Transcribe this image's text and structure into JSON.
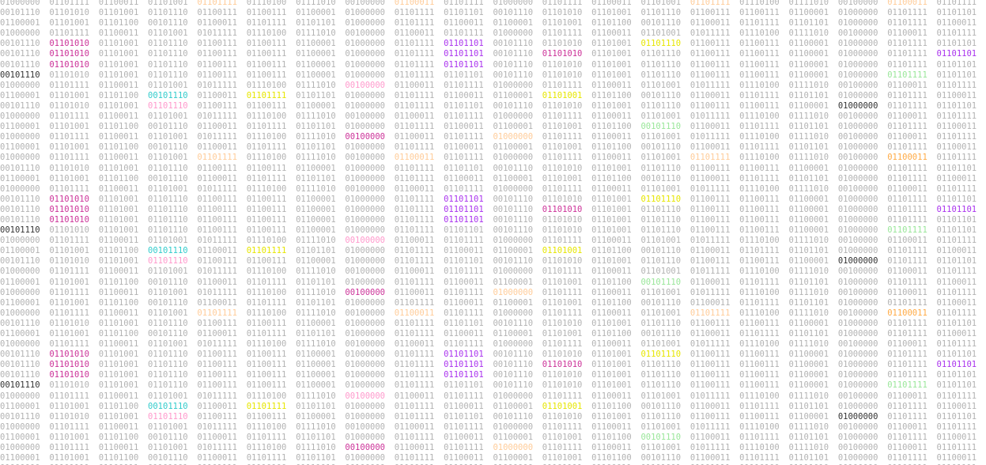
{
  "binary_rows": [
    "01000000 01101111 01100011 01101001 01101111 01110100 01111010 00100000 01100011 01101111 01000000 01101111 01100011 01101001 01101111 01110100 01111010 00100000 01100011 01101111",
    "00101110 01101010 01101001 01101110 01100111 01100111 01100001 01000000 01101111 01101101 00101110 01101010 01101001 01101110 01100111 01100111 01100001 01000000 01101111 01101101",
    "01100001 01101001 01101100 00101110 01100011 01101111 01101101 01000000 01101111 01100011 01100001 01101001 01101100 00101110 01100011 01101111 01101101 01000000 01101111 01100011",
    "01000000 01101111 01100011 01101001 01011111 01110100 01111010 00100000 01100011 01101111 01000000 01101111 01100011 01101001 01011111 01110100 01111010 00100000 01100011 01101111",
    "00101110 01101010 01101001 01101110 01100111 01100111 01100001 01000000 01101111 01101101 00101110 01101010 01101001 01101110 01100111 01100111 01100001 01000000 01101111 01101101",
    "00101110 01101010 01101001 01101110 01100111 01100111 01100001 01000000 01101111 01101101 00101110 01101010 01101001 01101110 01100111 01100111 01100001 01000000 01101111 01101101",
    "00101110 01101010 01101001 01101110 01100111 01100111 01100001 01000000 01101111 01101101 00101110 01101010 01101001 01101110 01100111 01100111 01100001 01000000 01101111 01101101",
    "00101110 01101010 01101001 01101110 01100111 01100111 01100001 01000000 01101111 01101101 00101110 01101010 01101001 01101110 01100111 01100111 01100001 01000000 01101111 01101101",
    "01000000 01101111 01100011 01101001 01011111 01110100 01111010 00100000 01100011 01101111 01000000 01101111 01100011 01101001 01011111 01110100 01111010 00100000 01100011 01101111",
    "01100001 01101001 01101100 00101110 01100011 01101111 01101101 01000000 01101111 01100011 01100001 01101001 01101100 00101110 01100011 01101111 01101101 01000000 01101111 01100011",
    "00101110 01101010 01101001 01101110 01100111 01100111 01100001 01000000 01101111 01101101 00101110 01101010 01101001 01101110 01100111 01100111 01100001 01000000 01101111 01101101",
    "01000000 01101111 01100011 01101001 01011111 01110100 01111010 00100000 01100011 01101111 01000000 01101111 01100011 01101001 01011111 01110100 01111010 00100000 01100011 01101111",
    "01100001 01101001 01101100 00101110 01100011 01101111 01101101 01000000 01101111 01100011 01100001 01101001 01101100 00101110 01100011 01101111 01101101 01000000 01101111 01100011",
    "01000000 01101111 01100011 01101001 01011111 01110100 01111010 00100000 01100011 01101111 01000000 01101111 01100011 01101001 01011111 01110100 01111010 00100000 01100011 01101111",
    "01100001 01101001 01101100 00101110 01100011 01101111 01101101 01000000 01101111 01100011 01100001 01101001 01101100 00101110 01100011 01101111 01101101 01000000 01101111 01100011",
    "01000000 01101111 01100011 01101001 01101111 01110100 01111010 00100000 01100011 01101111 01000000 01101111 01100011 01101001 01101111 01110100 01111010 00100000 01100011 01101111",
    "00101110 01101010 01101001 01101110 01100111 01100111 01100001 01000000 01101111 01101101 00101110 01101010 01101001 01101110 01100111 01100111 01100001 01000000 01101111 01101101",
    "01100001 01101001 01101100 00101110 01100011 01101111 01101101 01000000 01101111 01100011 01100001 01101001 01101100 00101110 01100011 01101111 01101101 01000000 01101111 01100011",
    "01000000 01101111 01100011 01101001 01011111 01110100 01111010 00100000 01100011 01101111 01000000 01101111 01100011 01101001 01011111 01110100 01111010 00100000 01100011 01101111",
    "00101110 01101010 01101001 01101110 01100111 01100111 01100001 01000000 01101111 01101101 00101110 01101010 01101001 01101110 01100111 01100111 01100001 01000000 01101111 01101101",
    "00101110 01101010 01101001 01101110 01100111 01100111 01100001 01000000 01101111 01101101 00101110 01101010 01101001 01101110 01100111 01100111 01100001 01000000 01101111 01101101",
    "00101110 01101010 01101001 01101110 01100111 01100111 01100001 01000000 01101111 01101101 00101110 01101010 01101001 01101110 01100111 01100111 01100001 01000000 01101111 01101101",
    "00101110 01101010 01101001 01101110 01100111 01100111 01100001 01000000 01101111 01101101 00101110 01101010 01101001 01101110 01100111 01100111 01100001 01000000 01101111 01101101",
    "01000000 01101111 01100011 01101001 01011111 01110100 01111010 00100000 01100011 01101111 01000000 01101111 01100011 01101001 01011111 01110100 01111010 00100000 01100011 01101111",
    "01100001 01101001 01101100 00101110 01100011 01101111 01101101 01000000 01101111 01100011 01100001 01101001 01101100 00101110 01100011 01101111 01101101 01000000 01101111 01100011",
    "00101110 01101010 01101001 01101110 01100111 01100111 01100001 01000000 01101111 01101101 00101110 01101010 01101001 01101110 01100111 01100111 01100001 01000000 01101111 01101101",
    "01000000 01101111 01100011 01101001 01011111 01110100 01111010 00100000 01100011 01101111 01000000 01101111 01100011 01101001 01011111 01110100 01111010 00100000 01100011 01101111",
    "01100001 01101001 01101100 00101110 01100011 01101111 01101101 01000000 01101111 01100011 01100001 01101001 01101100 00101110 01100011 01101111 01101101 01000000 01101111 01100011",
    "01000000 01101111 01100011 01101001 01011111 01110100 01111010 00100000 01100011 01101111 01000000 01101111 01100011 01101001 01011111 01110100 01111010 00100000 01100011 01101111",
    "01100001 01101001 01101100 00101110 01100011 01101111 01101101 01000000 01101111 01100011 01100001 01101001 01101100 00101110 01100011 01101111 01101101 01000000 01101111 01100011",
    "01000000 01101111 01100011 01101001 01101111 01110100 01111010 00100000 01100011 01101111 01000000 01101111 01100011 01101001 01101111 01110100 01111010 00100000 01100011 01101111",
    "00101110 01101010 01101001 01101110 01100111 01100111 01100001 01000000 01101111 01101101 00101110 01101010 01101001 01101110 01100111 01100111 01100001 01000000 01101111 01101101",
    "01100001 01101001 01101100 00101110 01100011 01101111 01101101 01000000 01101111 01100011 01100001 01101001 01101100 00101110 01100011 01101111 01101101 01000000 01101111 01100011",
    "01000000 01101111 01100011 01101001 01011111 01110100 01111010 00100000 01100011 01101111 01000000 01101111 01100011 01101001 01011111 01110100 01111010 00100000 01100011 01101111",
    "00101110 01101010 01101001 01101110 01100111 01100111 01100001 01000000 01101111 01101101 00101110 01101010 01101001 01101110 01100111 01100111 01100001 01000000 01101111 01101101",
    "00101110 01101010 01101001 01101110 01100111 01100111 01100001 01000000 01101111 01101101 00101110 01101010 01101001 01101110 01100111 01100111 01100001 01000000 01101111 01101101",
    "00101110 01101010 01101001 01101110 01100111 01100111 01100001 01000000 01101111 01101101 00101110 01101010 01101001 01101110 01100111 01100111 01100001 01000000 01101111 01101101",
    "00101110 01101010 01101001 01101110 01100111 01100111 01100001 01000000 01101111 01101101 00101110 01101010 01101001 01101110 01100111 01100111 01100001 01000000 01101111 01101101",
    "01000000 01101111 01100011 01101001 01011111 01110100 01111010 00100000 01100011 01101111 01000000 01101111 01100011 01101001 01011111 01110100 01111010 00100000 01100011 01101111",
    "01100001 01101001 01101100 00101110 01100011 01101111 01101101 01000000 01101111 01100011 01100001 01101001 01101100 00101110 01100011 01101111 01101101 01000000 01101111 01100011",
    "00101110 01101010 01101001 01101110 01100111 01100111 01100001 01000000 01101111 01101101 00101110 01101010 01101001 01101110 01100111 01100111 01100001 01000000 01101111 01101101",
    "01000000 01101111 01100011 01101001 01011111 01110100 01111010 00100000 01100011 01101111 01000000 01101111 01100011 01101001 01011111 01110100 01111010 00100000 01100011 01101111",
    "01100001 01101001 01101100 00101110 01100011 01101111 01101101 01000000 01101111 01100011 01100001 01101001 01101100 00101110 01100011 01101111 01101101 01000000 01101111 01100011",
    "01000000 01101111 01100011 01101001 01011111 01110100 01111010 00100000 01100011 01101111 01000000 01101111 01100011 01101001 01011111 01110100 01111010 00100000 01100011 01101111",
    "01100001 01101001 01101100 00101110 01100011 01101111 01101101 01000000 01101111 01100011 01100001 01101001 01101100 00101110 01100011 01101111 01101101 01000000 01101111 01100011",
    "01000000 01101111 01100011 01101001 01101111 01110100 01111010 00100000 01100011 01101111 01000000 01101111 01100011 01101001 01101111 01110100 01111010 00100000 01100011 01101111"
  ],
  "palette": {
    "background": "#ffffff",
    "base_text": "#b3b3b3",
    "highlights": [
      "#ffcc99",
      "#cc3399",
      "#33cccc",
      "#e6e600",
      "#ff99cc",
      "#99e699",
      "#333333",
      "#aa33ee",
      "#ffaa44"
    ]
  },
  "highlight_cells": [
    {
      "row": 0,
      "col": 4,
      "color": "#ffcc99"
    },
    {
      "row": 0,
      "col": 8,
      "color": "#ffcc99"
    },
    {
      "row": 0,
      "col": 14,
      "color": "#ffcc99"
    },
    {
      "row": 0,
      "col": 18,
      "color": "#ffcc99"
    },
    {
      "row": 4,
      "col": 1,
      "color": "#cc3399"
    },
    {
      "row": 4,
      "col": 9,
      "color": "#aa33ee"
    },
    {
      "row": 4,
      "col": 13,
      "color": "#e6e600"
    },
    {
      "row": 5,
      "col": 1,
      "color": "#cc3399"
    },
    {
      "row": 5,
      "col": 9,
      "color": "#aa33ee"
    },
    {
      "row": 5,
      "col": 11,
      "color": "#cc3399"
    },
    {
      "row": 5,
      "col": 19,
      "color": "#aa33ee"
    },
    {
      "row": 6,
      "col": 1,
      "color": "#cc3399"
    },
    {
      "row": 6,
      "col": 9,
      "color": "#aa33ee"
    },
    {
      "row": 7,
      "col": 0,
      "color": "#333333"
    },
    {
      "row": 7,
      "col": 18,
      "color": "#99e699"
    },
    {
      "row": 8,
      "col": 7,
      "color": "#ff99cc"
    },
    {
      "row": 9,
      "col": 3,
      "color": "#33cccc"
    },
    {
      "row": 9,
      "col": 5,
      "color": "#e6e600"
    },
    {
      "row": 9,
      "col": 11,
      "color": "#e6e600"
    },
    {
      "row": 10,
      "col": 3,
      "color": "#ff99cc"
    },
    {
      "row": 10,
      "col": 17,
      "color": "#333333"
    },
    {
      "row": 12,
      "col": 13,
      "color": "#99e699"
    },
    {
      "row": 13,
      "col": 7,
      "color": "#cc3399"
    },
    {
      "row": 13,
      "col": 10,
      "color": "#ffcc99"
    },
    {
      "row": 15,
      "col": 4,
      "color": "#ffcc99"
    },
    {
      "row": 15,
      "col": 8,
      "color": "#ffcc99"
    },
    {
      "row": 15,
      "col": 14,
      "color": "#ffcc99"
    },
    {
      "row": 15,
      "col": 18,
      "color": "#ffaa44"
    },
    {
      "row": 19,
      "col": 1,
      "color": "#cc3399"
    },
    {
      "row": 19,
      "col": 9,
      "color": "#aa33ee"
    },
    {
      "row": 19,
      "col": 13,
      "color": "#e6e600"
    },
    {
      "row": 20,
      "col": 1,
      "color": "#cc3399"
    },
    {
      "row": 20,
      "col": 9,
      "color": "#aa33ee"
    },
    {
      "row": 20,
      "col": 11,
      "color": "#cc3399"
    },
    {
      "row": 20,
      "col": 19,
      "color": "#aa33ee"
    },
    {
      "row": 21,
      "col": 1,
      "color": "#cc3399"
    },
    {
      "row": 21,
      "col": 9,
      "color": "#aa33ee"
    },
    {
      "row": 22,
      "col": 0,
      "color": "#333333"
    },
    {
      "row": 22,
      "col": 18,
      "color": "#99e699"
    },
    {
      "row": 23,
      "col": 7,
      "color": "#ff99cc"
    },
    {
      "row": 24,
      "col": 3,
      "color": "#33cccc"
    },
    {
      "row": 24,
      "col": 5,
      "color": "#e6e600"
    },
    {
      "row": 24,
      "col": 11,
      "color": "#e6e600"
    },
    {
      "row": 25,
      "col": 3,
      "color": "#ff99cc"
    },
    {
      "row": 25,
      "col": 17,
      "color": "#333333"
    },
    {
      "row": 27,
      "col": 13,
      "color": "#99e699"
    },
    {
      "row": 28,
      "col": 7,
      "color": "#cc3399"
    },
    {
      "row": 28,
      "col": 10,
      "color": "#ffcc99"
    },
    {
      "row": 30,
      "col": 4,
      "color": "#ffcc99"
    },
    {
      "row": 30,
      "col": 8,
      "color": "#ffcc99"
    },
    {
      "row": 30,
      "col": 14,
      "color": "#ffcc99"
    },
    {
      "row": 30,
      "col": 18,
      "color": "#ffaa44"
    },
    {
      "row": 34,
      "col": 1,
      "color": "#cc3399"
    },
    {
      "row": 34,
      "col": 9,
      "color": "#aa33ee"
    },
    {
      "row": 34,
      "col": 13,
      "color": "#e6e600"
    },
    {
      "row": 35,
      "col": 1,
      "color": "#cc3399"
    },
    {
      "row": 35,
      "col": 9,
      "color": "#aa33ee"
    },
    {
      "row": 35,
      "col": 11,
      "color": "#cc3399"
    },
    {
      "row": 35,
      "col": 19,
      "color": "#aa33ee"
    },
    {
      "row": 36,
      "col": 1,
      "color": "#cc3399"
    },
    {
      "row": 36,
      "col": 9,
      "color": "#aa33ee"
    },
    {
      "row": 37,
      "col": 0,
      "color": "#333333"
    },
    {
      "row": 37,
      "col": 18,
      "color": "#99e699"
    },
    {
      "row": 38,
      "col": 7,
      "color": "#ff99cc"
    },
    {
      "row": 39,
      "col": 3,
      "color": "#33cccc"
    },
    {
      "row": 39,
      "col": 5,
      "color": "#e6e600"
    },
    {
      "row": 39,
      "col": 11,
      "color": "#e6e600"
    },
    {
      "row": 40,
      "col": 3,
      "color": "#ff99cc"
    },
    {
      "row": 40,
      "col": 17,
      "color": "#333333"
    },
    {
      "row": 42,
      "col": 13,
      "color": "#99e699"
    },
    {
      "row": 43,
      "col": 7,
      "color": "#cc3399"
    },
    {
      "row": 43,
      "col": 10,
      "color": "#ffcc99"
    }
  ]
}
